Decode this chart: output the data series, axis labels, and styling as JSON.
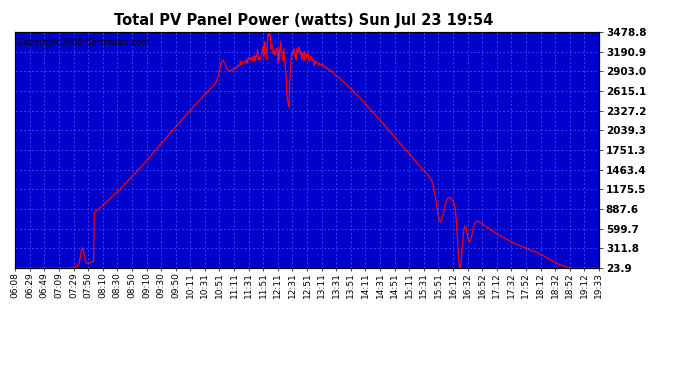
{
  "title": "Total PV Panel Power (watts) Sun Jul 23 19:54",
  "copyright": "Copyright 2006 Cartronics.com",
  "plot_bg_color": "#0000cc",
  "line_color": "#ff0000",
  "title_color": "#000000",
  "fig_bg_color": "#ffffff",
  "yticks": [
    23.9,
    311.8,
    599.7,
    887.6,
    1175.5,
    1463.4,
    1751.3,
    2039.3,
    2327.2,
    2615.1,
    2903.0,
    3190.9,
    3478.8
  ],
  "xtick_labels": [
    "06:08",
    "06:29",
    "06:49",
    "07:09",
    "07:29",
    "07:50",
    "08:10",
    "08:30",
    "08:50",
    "09:10",
    "09:30",
    "09:50",
    "10:11",
    "10:31",
    "10:51",
    "11:11",
    "11:31",
    "11:51",
    "12:11",
    "12:31",
    "12:51",
    "13:11",
    "13:31",
    "13:51",
    "14:11",
    "14:31",
    "14:51",
    "15:11",
    "15:31",
    "15:51",
    "16:12",
    "16:32",
    "16:52",
    "17:12",
    "17:32",
    "17:52",
    "18:12",
    "18:32",
    "18:52",
    "19:12",
    "19:33"
  ],
  "ymin": 23.9,
  "ymax": 3478.8
}
